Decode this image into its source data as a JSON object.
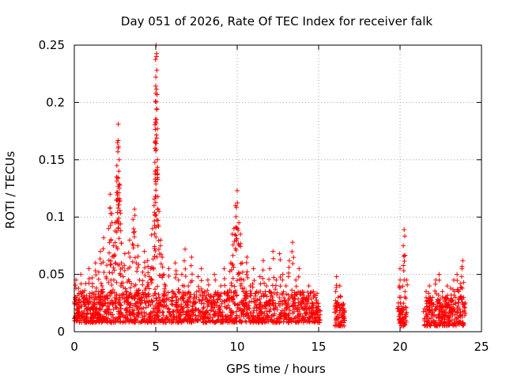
{
  "chart_data": {
    "type": "scatter",
    "title": "Day 051 of 2026, Rate Of TEC Index for receiver falk",
    "xlabel": "GPS time / hours",
    "ylabel": "ROTI / TECUs",
    "xlim": [
      0,
      25
    ],
    "ylim": [
      0,
      0.25
    ],
    "xticks": [
      0,
      5,
      10,
      15,
      20,
      25
    ],
    "yticks": [
      0,
      0.05,
      0.1,
      0.15,
      0.2,
      0.25
    ],
    "xtick_labels": [
      "0",
      "5",
      "10",
      "15",
      "20",
      "25"
    ],
    "ytick_labels": [
      "0",
      "0.05",
      "0.1",
      "0.15",
      "0.2",
      "0.25"
    ],
    "grid": true,
    "marker": "+",
    "color": "#ff0000",
    "series": [
      {
        "name": "ROTI",
        "points": [
          [
            0.05,
            0.03
          ],
          [
            0.1,
            0.045
          ],
          [
            0.15,
            0.02
          ],
          [
            0.2,
            0.012
          ],
          [
            0.25,
            0.038
          ],
          [
            0.3,
            0.025
          ],
          [
            0.35,
            0.015
          ],
          [
            0.4,
            0.05
          ],
          [
            0.45,
            0.022
          ],
          [
            0.5,
            0.035
          ],
          [
            0.6,
            0.018
          ],
          [
            0.7,
            0.042
          ],
          [
            0.8,
            0.028
          ],
          [
            0.9,
            0.055
          ],
          [
            1.0,
            0.02
          ],
          [
            1.1,
            0.047
          ],
          [
            1.2,
            0.033
          ],
          [
            1.3,
            0.06
          ],
          [
            1.4,
            0.025
          ],
          [
            1.5,
            0.052
          ],
          [
            1.6,
            0.07
          ],
          [
            1.7,
            0.04
          ],
          [
            1.8,
            0.082
          ],
          [
            1.9,
            0.03
          ],
          [
            2.0,
            0.058
          ],
          [
            2.1,
            0.09
          ],
          [
            2.2,
            0.12
          ],
          [
            2.25,
            0.045
          ],
          [
            2.3,
            0.103
          ],
          [
            2.4,
            0.075
          ],
          [
            2.5,
            0.095
          ],
          [
            2.6,
            0.135
          ],
          [
            2.65,
            0.165
          ],
          [
            2.7,
            0.181
          ],
          [
            2.75,
            0.15
          ],
          [
            2.8,
            0.128
          ],
          [
            2.85,
            0.088
          ],
          [
            2.9,
            0.06
          ],
          [
            3.0,
            0.048
          ],
          [
            3.1,
            0.068
          ],
          [
            3.2,
            0.035
          ],
          [
            3.3,
            0.055
          ],
          [
            3.4,
            0.08
          ],
          [
            3.5,
            0.042
          ],
          [
            3.6,
            0.098
          ],
          [
            3.7,
            0.107
          ],
          [
            3.8,
            0.06
          ],
          [
            3.9,
            0.075
          ],
          [
            4.0,
            0.045
          ],
          [
            4.1,
            0.03
          ],
          [
            4.2,
            0.052
          ],
          [
            4.3,
            0.07
          ],
          [
            4.4,
            0.038
          ],
          [
            4.5,
            0.062
          ],
          [
            4.6,
            0.048
          ],
          [
            4.7,
            0.055
          ],
          [
            4.8,
            0.09
          ],
          [
            4.9,
            0.11
          ],
          [
            4.95,
            0.16
          ],
          [
            5.0,
            0.208
          ],
          [
            5.02,
            0.25
          ],
          [
            5.05,
            0.24
          ],
          [
            5.1,
            0.15
          ],
          [
            5.2,
            0.105
          ],
          [
            5.3,
            0.08
          ],
          [
            5.4,
            0.065
          ],
          [
            5.5,
            0.05
          ],
          [
            5.6,
            0.04
          ],
          [
            5.8,
            0.055
          ],
          [
            6.0,
            0.035
          ],
          [
            6.2,
            0.06
          ],
          [
            6.4,
            0.045
          ],
          [
            6.6,
            0.05
          ],
          [
            6.8,
            0.072
          ],
          [
            7.0,
            0.04
          ],
          [
            7.2,
            0.065
          ],
          [
            7.4,
            0.03
          ],
          [
            7.6,
            0.048
          ],
          [
            7.8,
            0.055
          ],
          [
            8.0,
            0.035
          ],
          [
            8.2,
            0.045
          ],
          [
            8.4,
            0.03
          ],
          [
            8.6,
            0.05
          ],
          [
            8.8,
            0.028
          ],
          [
            9.0,
            0.04
          ],
          [
            9.2,
            0.055
          ],
          [
            9.4,
            0.035
          ],
          [
            9.6,
            0.06
          ],
          [
            9.7,
            0.085
          ],
          [
            9.8,
            0.09
          ],
          [
            9.9,
            0.11
          ],
          [
            10.0,
            0.123
          ],
          [
            10.1,
            0.095
          ],
          [
            10.2,
            0.085
          ],
          [
            10.3,
            0.06
          ],
          [
            10.4,
            0.045
          ],
          [
            10.6,
            0.065
          ],
          [
            10.8,
            0.04
          ],
          [
            11.0,
            0.055
          ],
          [
            11.2,
            0.035
          ],
          [
            11.4,
            0.048
          ],
          [
            11.6,
            0.062
          ],
          [
            11.8,
            0.04
          ],
          [
            12.0,
            0.055
          ],
          [
            12.2,
            0.07
          ],
          [
            12.4,
            0.045
          ],
          [
            12.6,
            0.068
          ],
          [
            12.8,
            0.05
          ],
          [
            13.0,
            0.04
          ],
          [
            13.2,
            0.062
          ],
          [
            13.4,
            0.078
          ],
          [
            13.6,
            0.045
          ],
          [
            13.8,
            0.055
          ],
          [
            14.0,
            0.035
          ],
          [
            14.2,
            0.028
          ],
          [
            14.4,
            0.04
          ],
          [
            14.6,
            0.025
          ],
          [
            14.8,
            0.03
          ],
          [
            15.0,
            0.022
          ],
          [
            15.1,
            0.018
          ],
          [
            16.0,
            0.02
          ],
          [
            16.05,
            0.035
          ],
          [
            16.1,
            0.048
          ],
          [
            16.15,
            0.025
          ],
          [
            16.2,
            0.03
          ],
          [
            16.25,
            0.015
          ],
          [
            16.3,
            0.04
          ],
          [
            16.5,
            0.015
          ],
          [
            16.55,
            0.02
          ],
          [
            16.6,
            0.01
          ],
          [
            19.9,
            0.025
          ],
          [
            19.95,
            0.04
          ],
          [
            20.0,
            0.055
          ],
          [
            20.05,
            0.03
          ],
          [
            20.1,
            0.02
          ],
          [
            20.2,
            0.075
          ],
          [
            20.25,
            0.089
          ],
          [
            20.3,
            0.035
          ],
          [
            20.35,
            0.015
          ],
          [
            20.4,
            0.045
          ],
          [
            21.5,
            0.02
          ],
          [
            21.6,
            0.035
          ],
          [
            21.7,
            0.015
          ],
          [
            21.8,
            0.04
          ],
          [
            21.9,
            0.025
          ],
          [
            22.0,
            0.03
          ],
          [
            22.1,
            0.018
          ],
          [
            22.2,
            0.045
          ],
          [
            22.3,
            0.028
          ],
          [
            22.4,
            0.05
          ],
          [
            22.5,
            0.022
          ],
          [
            22.6,
            0.035
          ],
          [
            22.7,
            0.015
          ],
          [
            22.8,
            0.03
          ],
          [
            22.9,
            0.04
          ],
          [
            23.0,
            0.025
          ],
          [
            23.1,
            0.038
          ],
          [
            23.2,
            0.02
          ],
          [
            23.3,
            0.045
          ],
          [
            23.4,
            0.03
          ],
          [
            23.5,
            0.05
          ],
          [
            23.6,
            0.035
          ],
          [
            23.7,
            0.042
          ],
          [
            23.8,
            0.055
          ],
          [
            23.85,
            0.062
          ],
          [
            23.9,
            0.03
          ],
          [
            24.0,
            0.025
          ]
        ]
      }
    ],
    "band_regions": [
      {
        "x_start": 0,
        "x_end": 15.1,
        "baseline": 0.008,
        "base_top": 0.035
      },
      {
        "x_start": 16.0,
        "x_end": 16.6,
        "baseline": 0.005,
        "base_top": 0.025
      },
      {
        "x_start": 19.9,
        "x_end": 20.4,
        "baseline": 0.005,
        "base_top": 0.02
      },
      {
        "x_start": 21.5,
        "x_end": 24.0,
        "baseline": 0.005,
        "base_top": 0.03
      }
    ]
  }
}
